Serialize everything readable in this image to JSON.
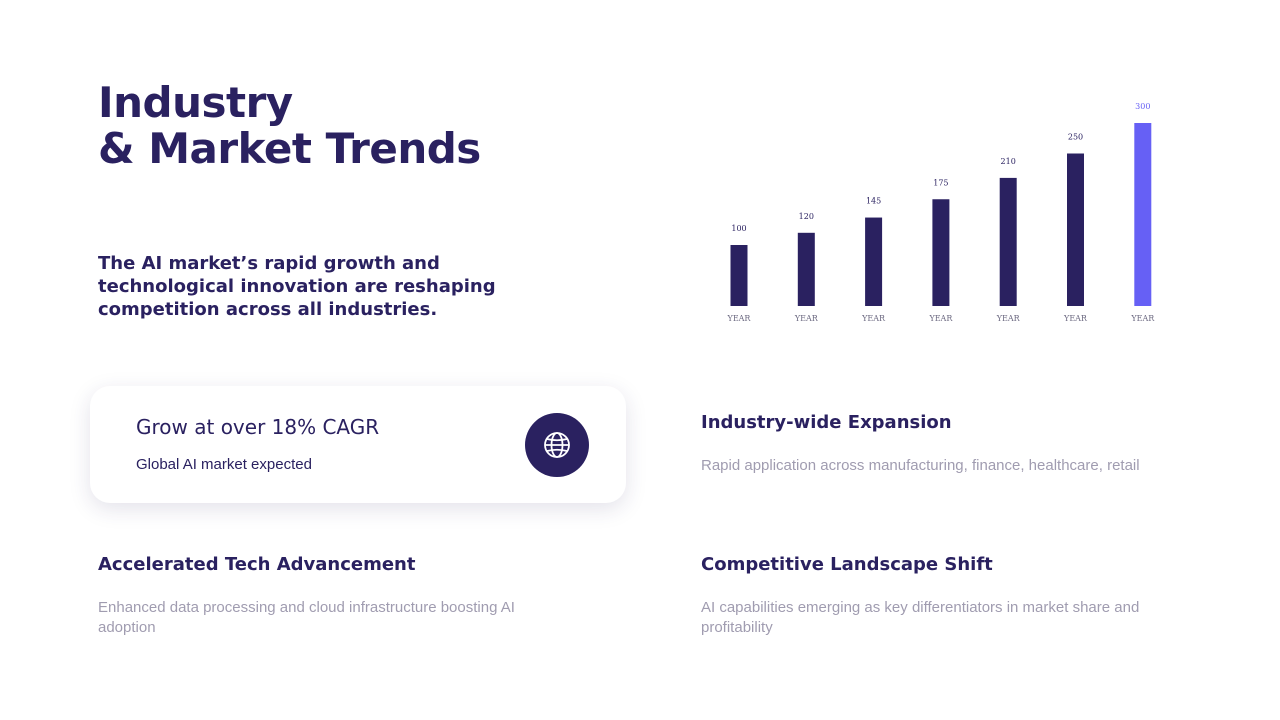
{
  "title": {
    "line1": "Industry",
    "line2": "& Market Trends"
  },
  "subtitle": "The AI market’s rapid growth and technological innovation are reshaping competition across all industries.",
  "colors": {
    "primary": "#2a2160",
    "highlight": "#6660f5",
    "muted_text": "#a09cb0"
  },
  "chart_data": {
    "type": "bar",
    "categories": [
      "YEAR",
      "YEAR",
      "YEAR",
      "YEAR",
      "YEAR",
      "YEAR",
      "YEAR"
    ],
    "values": [
      100,
      120,
      145,
      175,
      210,
      250,
      300
    ],
    "highlight_index": 6,
    "ylim": [
      0,
      300
    ],
    "grid": false,
    "legend": "none",
    "data_labels": true
  },
  "card": {
    "title": "Grow at over 18% CAGR",
    "subtitle": "Global AI market expected",
    "icon": "globe-icon"
  },
  "blocks": [
    {
      "title": "Industry-wide Expansion",
      "text": "Rapid application across manufacturing, finance, healthcare, retail"
    },
    {
      "title": "Accelerated Tech Advancement",
      "text": "Enhanced data processing and cloud infrastructure boosting AI adoption"
    },
    {
      "title": "Competitive Landscape Shift",
      "text": "AI capabilities emerging as key differentiators in market share and profitability"
    }
  ]
}
